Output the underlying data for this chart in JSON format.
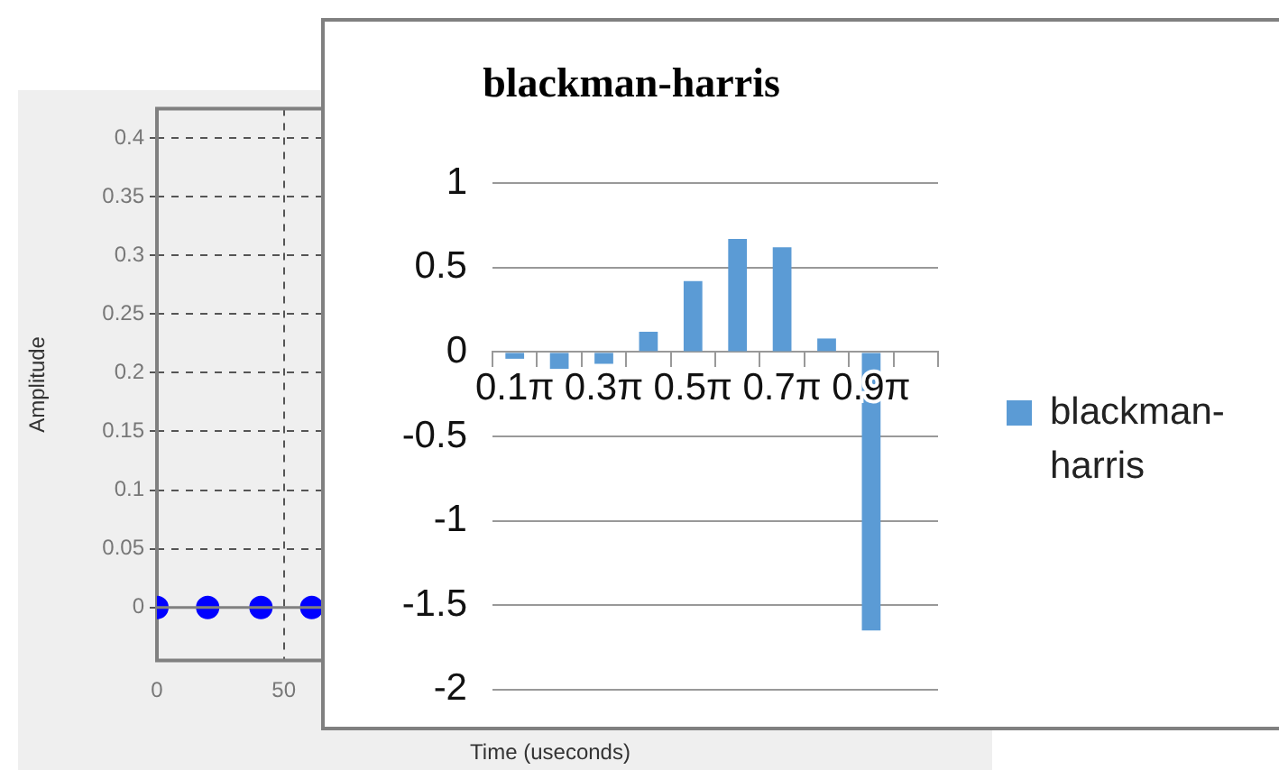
{
  "chart_data": [
    {
      "type": "scatter",
      "ylabel": "Amplitude",
      "xlabel": "Time (useconds)",
      "series": [
        {
          "color": "#0000ff",
          "x": [
            0,
            20,
            41,
            61
          ],
          "values": [
            0,
            0,
            0,
            0
          ]
        }
      ],
      "xlim": [
        0,
        310
      ],
      "xticks": [
        0,
        50
      ],
      "ylim": [
        -0.045,
        0.425
      ],
      "yticks": [
        0,
        0.05,
        0.1,
        0.15,
        0.2,
        0.25,
        0.3,
        0.35,
        0.4
      ],
      "grid": true,
      "marker": "circle",
      "ref_lines": [
        {
          "axis": "y",
          "value": 0,
          "color": "#808080"
        }
      ]
    },
    {
      "type": "bar",
      "title": "blackman-harris",
      "categories": [
        "0.1π",
        null,
        "0.3π",
        null,
        "0.5π",
        null,
        "0.7π",
        null,
        "0.9π",
        null
      ],
      "series": [
        {
          "name": "blackman-harris",
          "color": "#5b9bd5",
          "values": [
            -0.04,
            -0.1,
            -0.07,
            0.12,
            0.42,
            0.67,
            0.62,
            0.08,
            -1.65,
            null
          ]
        }
      ],
      "ylim": [
        -2,
        1
      ],
      "yticks": [
        -2,
        -1.5,
        -1,
        -0.5,
        0,
        0.5,
        1
      ],
      "grid": "y",
      "legend": "right"
    }
  ]
}
